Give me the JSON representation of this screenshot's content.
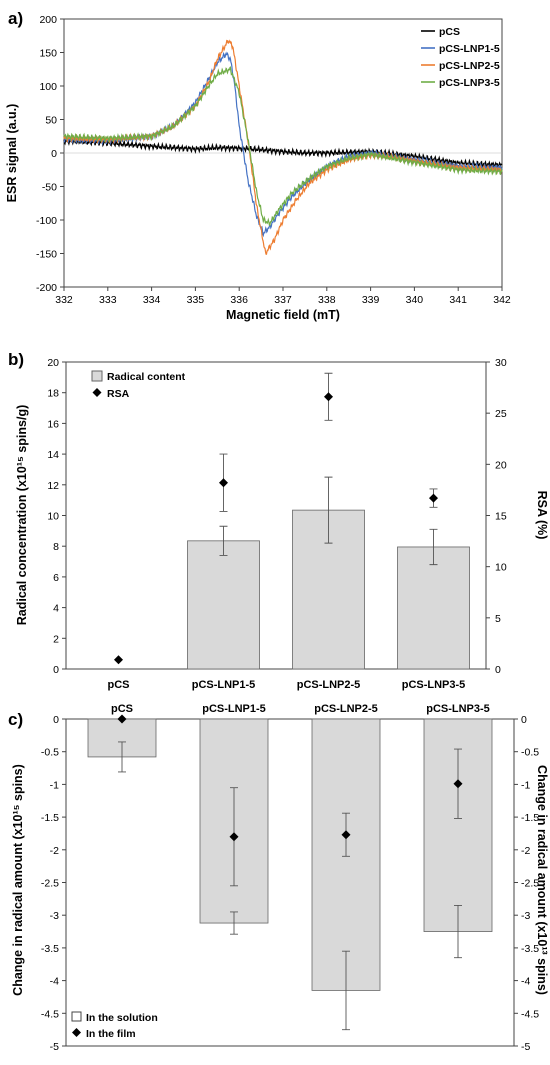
{
  "figure": {
    "panel_labels": [
      "a)",
      "b)",
      "c)"
    ]
  },
  "chart_data": [
    {
      "type": "line",
      "panel": "a)",
      "xlabel": "Magnetic field (mT)",
      "ylabel": "ESR signal (a.u.)",
      "xlim": [
        332,
        342
      ],
      "ylim": [
        -200,
        200
      ],
      "xticks": [
        332,
        333,
        334,
        335,
        336,
        337,
        338,
        339,
        340,
        341,
        342
      ],
      "yticks": [
        -200,
        -150,
        -100,
        -50,
        0,
        50,
        100,
        150,
        200
      ],
      "legend_position": "top-right",
      "colors": {
        "pCS": "#000000",
        "pCS-LNP1-5": "#4472C4",
        "pCS-LNP2-5": "#ED7D31",
        "pCS-LNP3-5": "#70AD47"
      },
      "series": [
        {
          "name": "pCS",
          "x": [
            332,
            333,
            334,
            334.5,
            335,
            335.5,
            336,
            336.5,
            337,
            337.5,
            338,
            339,
            340,
            341,
            342
          ],
          "y": [
            18,
            15,
            10,
            8,
            6,
            8,
            7,
            5,
            2,
            0,
            0,
            2,
            -5,
            -15,
            -18
          ]
        },
        {
          "name": "pCS-LNP1-5",
          "x": [
            332,
            333,
            334,
            334.5,
            335,
            335.3,
            335.5,
            335.7,
            335.8,
            335.9,
            336,
            336.2,
            336.4,
            336.55,
            336.7,
            336.9,
            337.2,
            337.6,
            338,
            338.5,
            339,
            339.5,
            340,
            341,
            342
          ],
          "y": [
            20,
            18,
            25,
            40,
            75,
            110,
            135,
            148,
            140,
            100,
            40,
            -40,
            -95,
            -120,
            -110,
            -90,
            -65,
            -40,
            -20,
            -5,
            0,
            -5,
            -10,
            -20,
            -22
          ]
        },
        {
          "name": "pCS-LNP2-5",
          "x": [
            332,
            333,
            334,
            334.5,
            335,
            335.3,
            335.5,
            335.75,
            335.85,
            336,
            336.2,
            336.4,
            336.6,
            336.8,
            337,
            337.3,
            337.6,
            338,
            338.5,
            339,
            339.5,
            340,
            341,
            342
          ],
          "y": [
            22,
            20,
            25,
            40,
            70,
            105,
            140,
            168,
            160,
            100,
            20,
            -80,
            -150,
            -130,
            -100,
            -70,
            -45,
            -25,
            -10,
            -3,
            -6,
            -12,
            -22,
            -25
          ]
        },
        {
          "name": "pCS-LNP3-5",
          "x": [
            332,
            333,
            334,
            334.5,
            335,
            335.3,
            335.5,
            335.8,
            336,
            336.2,
            336.4,
            336.55,
            336.7,
            336.9,
            337.2,
            337.6,
            338,
            338.5,
            339,
            339.5,
            340,
            341,
            342
          ],
          "y": [
            25,
            22,
            25,
            40,
            70,
            100,
            118,
            125,
            90,
            20,
            -60,
            -100,
            -105,
            -85,
            -60,
            -38,
            -20,
            -8,
            -2,
            -8,
            -14,
            -25,
            -28
          ]
        }
      ]
    },
    {
      "type": "bar",
      "panel": "b)",
      "categories": [
        "pCS",
        "pCS-LNP1-5",
        "pCS-LNP2-5",
        "pCS-LNP3-5"
      ],
      "ylabel": "Radical concentration (x10¹⁵ spins/g)",
      "y2label": "RSA (%)",
      "ylim": [
        0,
        20
      ],
      "y2lim": [
        0,
        30
      ],
      "yticks": [
        0,
        2,
        4,
        6,
        8,
        10,
        12,
        14,
        16,
        18,
        20
      ],
      "y2ticks": [
        0,
        5,
        10,
        15,
        20,
        25,
        30
      ],
      "legend_position": "top-left",
      "series": [
        {
          "name": "Radical content",
          "axis": "left",
          "style": "bar",
          "values": [
            0,
            8.35,
            10.35,
            7.95
          ],
          "errors": [
            0,
            0.95,
            2.15,
            1.15
          ]
        },
        {
          "name": "RSA",
          "axis": "right",
          "style": "marker",
          "values": [
            0.9,
            18.2,
            26.6,
            16.7
          ],
          "errors": [
            0,
            2.8,
            2.3,
            0.9
          ]
        }
      ]
    },
    {
      "type": "bar",
      "panel": "c)",
      "categories": [
        "pCS",
        "pCS-LNP1-5",
        "pCS-LNP2-5",
        "pCS-LNP3-5"
      ],
      "ylabel": "Change in radical amount (x10¹⁵ spins)",
      "y2label": "Change in radical amount (x10¹³ spins)",
      "ylim": [
        -5,
        0
      ],
      "y2lim": [
        -5,
        0
      ],
      "yticks": [
        0,
        -0.5,
        -1,
        -1.5,
        -2,
        -2.5,
        -3,
        -3.5,
        -4,
        -4.5,
        -5
      ],
      "y2ticks": [
        0,
        -0.5,
        -1,
        -1.5,
        -2,
        -2.5,
        -3,
        -3.5,
        -4,
        -4.5,
        -5
      ],
      "legend_position": "bottom-left",
      "series": [
        {
          "name": "In the solution",
          "axis": "left",
          "style": "bar",
          "values": [
            -0.58,
            -3.12,
            -4.15,
            -3.25
          ],
          "errors": [
            0.23,
            0.17,
            0.6,
            0.4
          ]
        },
        {
          "name": "In the film",
          "axis": "right",
          "style": "marker",
          "values": [
            0,
            -1.8,
            -1.77,
            -0.99
          ],
          "errors": [
            0,
            0.75,
            0.33,
            0.53
          ]
        }
      ]
    }
  ]
}
